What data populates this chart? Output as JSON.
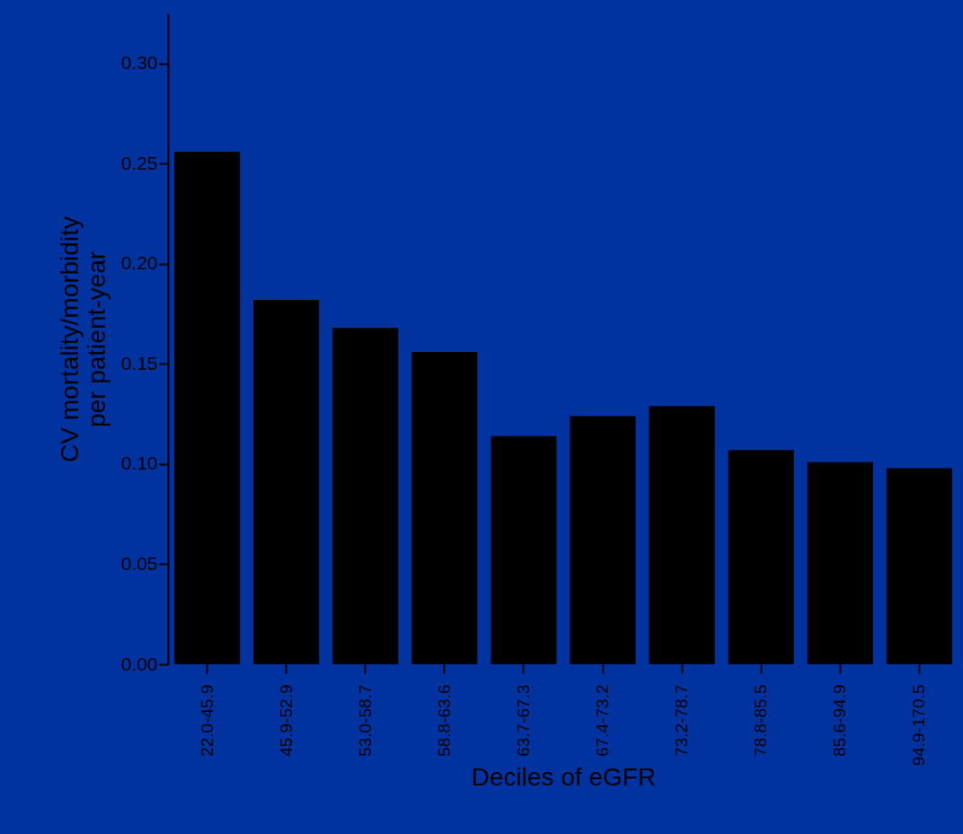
{
  "chart_data": {
    "type": "bar",
    "xlabel": "Deciles of eGFR",
    "ylabel": "CV mortality/morbidity\nper patient-year",
    "categories": [
      "22.0-45.9",
      "45.9-52.9",
      "53.0-58.7",
      "58.8-63.6",
      "63.7-67.3",
      "67.4-73.2",
      "73.2-78.7",
      "78.8-85.5",
      "85.6-94.9",
      "94.9-170.5"
    ],
    "values": [
      0.256,
      0.182,
      0.168,
      0.156,
      0.114,
      0.124,
      0.129,
      0.107,
      0.101,
      0.098
    ],
    "color": "#000000",
    "ylim": [
      0,
      0.325
    ],
    "yticks": [
      {
        "value": 0,
        "label": "0.00"
      },
      {
        "value": 0.05,
        "label": "0.05"
      },
      {
        "value": 0.1,
        "label": "0.10"
      },
      {
        "value": 0.15,
        "label": "0.15"
      },
      {
        "value": 0.2,
        "label": "0.20"
      },
      {
        "value": 0.25,
        "label": "0.25"
      },
      {
        "value": 0.3,
        "label": "0.30"
      }
    ],
    "grid": false
  }
}
